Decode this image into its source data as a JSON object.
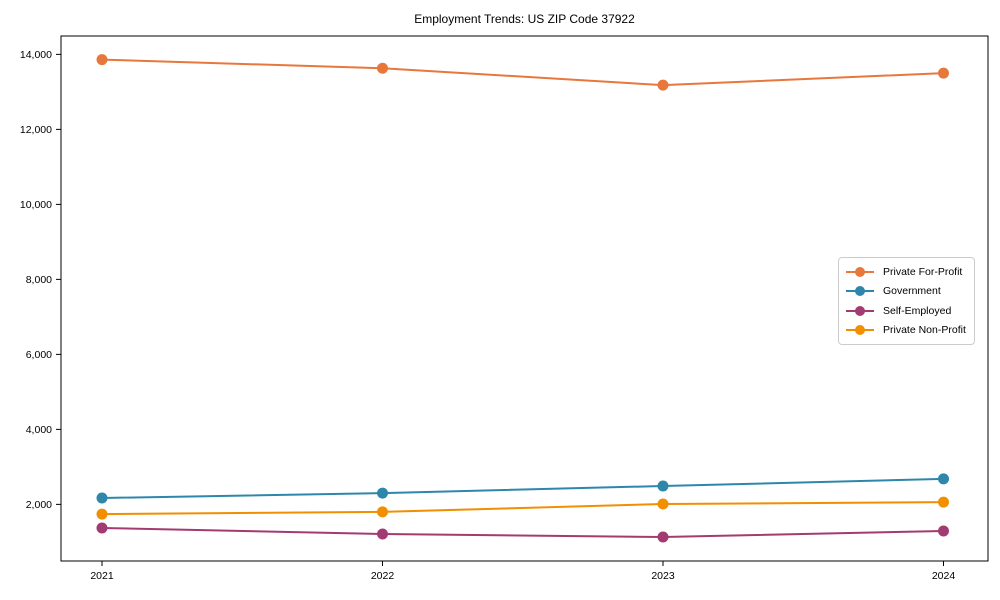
{
  "title": "Employment Trends: US ZIP Code 37922",
  "chart_data": {
    "type": "line",
    "title": "Employment Trends: US ZIP Code 37922",
    "x_categories": [
      "2021",
      "2022",
      "2023",
      "2024"
    ],
    "series": [
      {
        "name": "Private For-Profit",
        "color": "#E8773C",
        "values": [
          13860,
          13630,
          13180,
          13500
        ]
      },
      {
        "name": "Government",
        "color": "#2E86AB",
        "values": [
          2170,
          2300,
          2490,
          2680
        ]
      },
      {
        "name": "Self-Employed",
        "color": "#A23B72",
        "values": [
          1370,
          1210,
          1130,
          1290
        ]
      },
      {
        "name": "Private Non-Profit",
        "color": "#F18F01",
        "values": [
          1740,
          1800,
          2010,
          2060
        ]
      }
    ],
    "y_ticks": [
      2000,
      4000,
      6000,
      8000,
      10000,
      12000,
      14000
    ],
    "ylim": [
      490,
      14490
    ],
    "xlabel": "",
    "ylabel": "",
    "grid": false,
    "legend_position": "center-right",
    "marker": "circle",
    "axis_color": "#000000",
    "tick_label_color": "#000000",
    "background_color": "#ffffff"
  }
}
